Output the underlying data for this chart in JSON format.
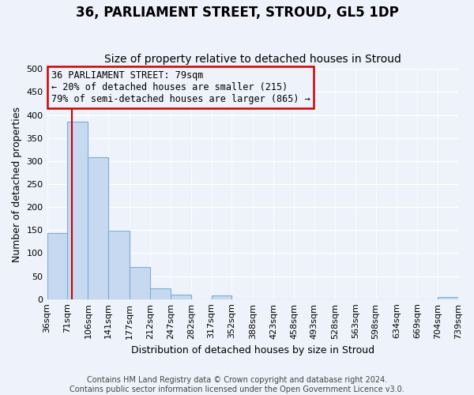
{
  "title": "36, PARLIAMENT STREET, STROUD, GL5 1DP",
  "subtitle": "Size of property relative to detached houses in Stroud",
  "xlabel": "Distribution of detached houses by size in Stroud",
  "ylabel": "Number of detached properties",
  "bin_edges": [
    36,
    71,
    106,
    141,
    177,
    212,
    247,
    282,
    317,
    352,
    388,
    423,
    458,
    493,
    528,
    563,
    598,
    634,
    669,
    704,
    739
  ],
  "bar_heights": [
    143,
    385,
    308,
    148,
    70,
    24,
    10,
    0,
    8,
    0,
    0,
    0,
    0,
    0,
    0,
    0,
    0,
    0,
    0,
    5
  ],
  "bar_color": "#c6d9f0",
  "bar_edge_color": "#7bafd4",
  "property_size": 79,
  "property_line_color": "#cc0000",
  "annotation_title": "36 PARLIAMENT STREET: 79sqm",
  "annotation_line1": "← 20% of detached houses are smaller (215)",
  "annotation_line2": "79% of semi-detached houses are larger (865) →",
  "annotation_box_color": "#cc0000",
  "ylim": [
    0,
    500
  ],
  "yticks": [
    0,
    50,
    100,
    150,
    200,
    250,
    300,
    350,
    400,
    450,
    500
  ],
  "tick_labels": [
    "36sqm",
    "71sqm",
    "106sqm",
    "141sqm",
    "177sqm",
    "212sqm",
    "247sqm",
    "282sqm",
    "317sqm",
    "352sqm",
    "388sqm",
    "423sqm",
    "458sqm",
    "493sqm",
    "528sqm",
    "563sqm",
    "598sqm",
    "634sqm",
    "669sqm",
    "704sqm",
    "739sqm"
  ],
  "footer_line1": "Contains HM Land Registry data © Crown copyright and database right 2024.",
  "footer_line2": "Contains public sector information licensed under the Open Government Licence v3.0.",
  "background_color": "#eef2fa",
  "grid_color": "#ffffff",
  "title_fontsize": 12,
  "subtitle_fontsize": 10,
  "axis_label_fontsize": 9,
  "tick_fontsize": 8,
  "footer_fontsize": 7,
  "annotation_fontsize": 8.5
}
